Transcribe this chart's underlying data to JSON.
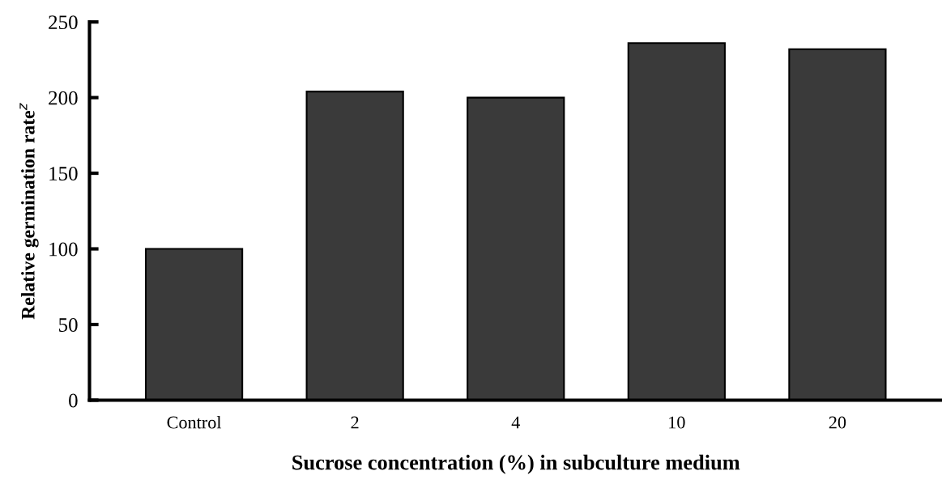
{
  "chart_data": {
    "type": "bar",
    "xlabel": "Sucrose concentration (%) in subculture medium",
    "ylabel": "Relative germination rate$^{z}$",
    "categories": [
      "Control",
      "2",
      "4",
      "10",
      "20"
    ],
    "values": [
      100,
      204,
      200,
      236,
      232
    ],
    "color": "#3a3a3a",
    "ylim": [
      0,
      250
    ],
    "yticks": [
      0,
      50,
      100,
      150,
      200,
      250
    ],
    "grid": false,
    "legend": false
  }
}
